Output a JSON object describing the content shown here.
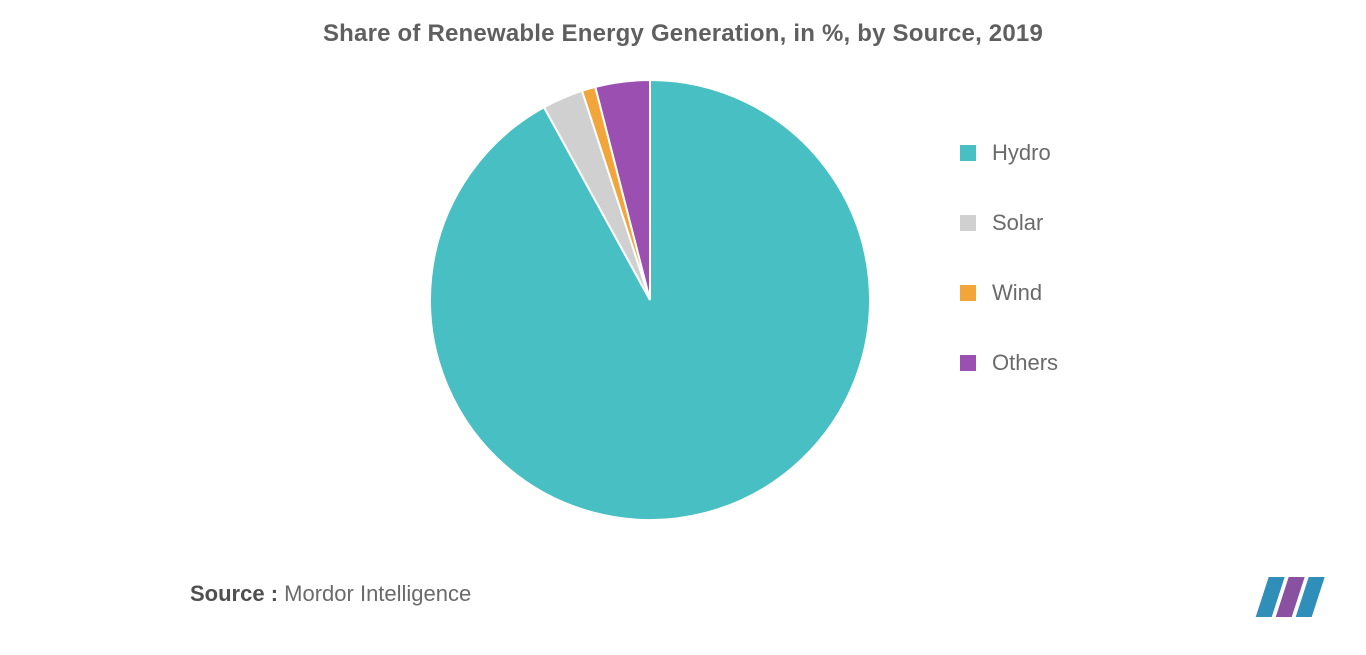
{
  "title": "Share of Renewable Energy Generation, in %, by Source, 2019",
  "chart": {
    "type": "pie",
    "radius": 220,
    "background_color": "#ffffff",
    "stroke_color": "#ffffff",
    "stroke_width": 2,
    "series": [
      {
        "label": "Hydro",
        "value": 92,
        "color": "#48bfc3"
      },
      {
        "label": "Solar",
        "value": 3,
        "color": "#d0d0d0"
      },
      {
        "label": "Wind",
        "value": 1,
        "color": "#f2a538"
      },
      {
        "label": "Others",
        "value": 4,
        "color": "#9b4fb0"
      }
    ]
  },
  "legend": {
    "swatch_size": 16,
    "label_fontsize": 22,
    "label_color": "#6a6a6a"
  },
  "source": {
    "prefix": "Source :",
    "text": "Mordor Intelligence"
  },
  "logo": {
    "bar_color_1": "#2f8fb8",
    "bar_color_2": "#8a51a3",
    "bar_color_3": "#2f8fb8"
  }
}
